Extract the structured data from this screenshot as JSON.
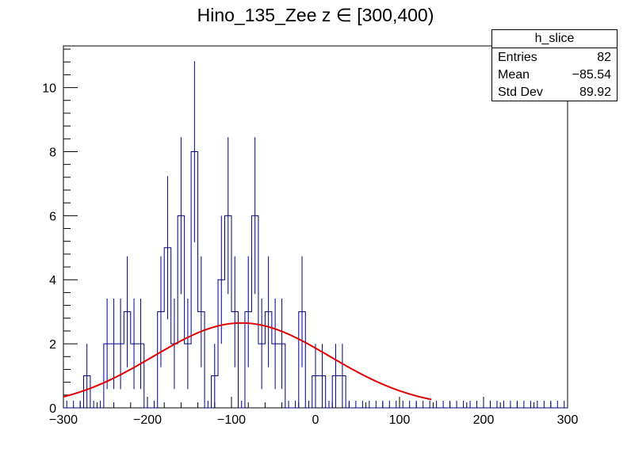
{
  "chart_data": {
    "type": "histogram",
    "title": "Hino_135_Zee z  ∈ [300,400)",
    "xlim": [
      -300,
      300
    ],
    "ylim": [
      0,
      11.3
    ],
    "bin_width": 8,
    "x_ticks": [
      -300,
      -200,
      -100,
      0,
      100,
      200,
      300
    ],
    "x_tick_labels": [
      "−300",
      "−200",
      "−100",
      "0",
      "100",
      "200",
      "300"
    ],
    "y_ticks": [
      0,
      2,
      4,
      6,
      8,
      10
    ],
    "y_tick_labels": [
      "0",
      "2",
      "4",
      "6",
      "8",
      "10"
    ],
    "histogram": {
      "name": "h_slice",
      "color": "#000080",
      "bin_edges_start": -300,
      "counts": [
        0,
        0,
        0,
        1,
        0,
        0,
        2,
        2,
        2,
        3,
        2,
        2,
        0,
        0,
        3,
        5,
        2,
        6,
        2,
        8,
        3,
        0,
        1,
        4,
        6,
        3,
        0,
        3,
        6,
        2,
        3,
        2,
        2,
        0,
        0,
        3,
        0,
        1,
        1,
        0,
        1,
        1,
        0,
        0,
        0,
        0,
        0,
        0,
        0,
        0,
        0,
        0,
        0,
        0,
        0,
        0,
        0,
        0,
        0,
        0,
        0,
        0,
        0,
        0,
        0,
        0,
        0,
        0,
        0,
        0,
        0,
        0,
        0,
        0,
        0
      ]
    },
    "fit": {
      "type": "gaussian",
      "color": "#e00000",
      "amplitude": 2.65,
      "mean": -88,
      "sigma": 105,
      "x_range": [
        -300,
        138
      ]
    },
    "stats": {
      "name": "h_slice",
      "entries_label": "Entries",
      "entries": "82",
      "mean_label": "Mean",
      "mean": "−85.54",
      "stddev_label": "Std Dev",
      "stddev": "89.92"
    }
  }
}
